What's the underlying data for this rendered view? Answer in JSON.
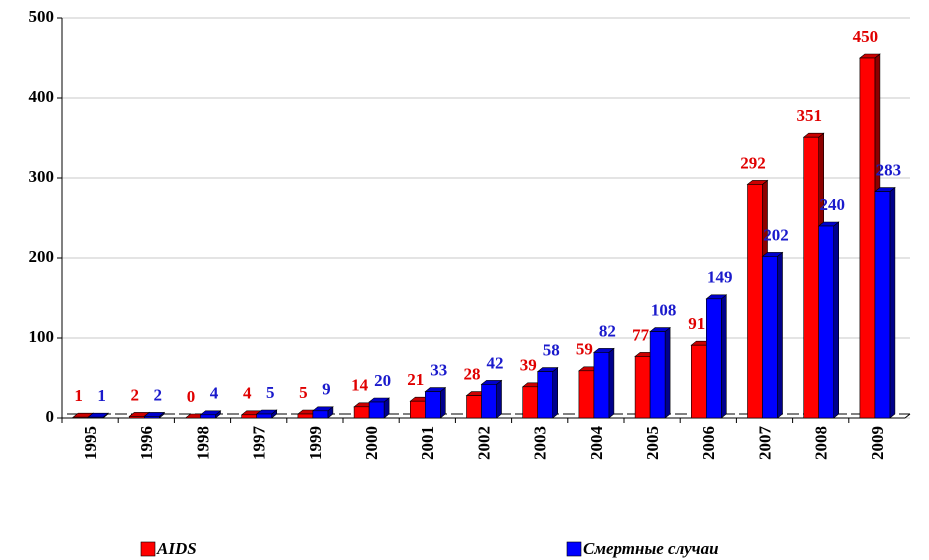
{
  "chart_data": {
    "type": "bar",
    "categories": [
      "1995",
      "1996",
      "1998",
      "1997",
      "1999",
      "2000",
      "2001",
      "2002",
      "2003",
      "2004",
      "2005",
      "2006",
      "2007",
      "2008",
      "2009"
    ],
    "series": [
      {
        "name": "AIDS",
        "color": "#ff0000",
        "values": [
          1,
          2,
          0,
          4,
          5,
          14,
          21,
          28,
          39,
          59,
          77,
          91,
          292,
          351,
          450
        ]
      },
      {
        "name": "Смертные случаи",
        "color": "#0000ff",
        "values": [
          1,
          2,
          4,
          5,
          9,
          20,
          33,
          42,
          58,
          82,
          108,
          149,
          202,
          240,
          283
        ]
      }
    ],
    "ylim": [
      0,
      500
    ],
    "yticks": [
      0,
      100,
      200,
      300,
      400,
      500
    ],
    "grid": true
  }
}
